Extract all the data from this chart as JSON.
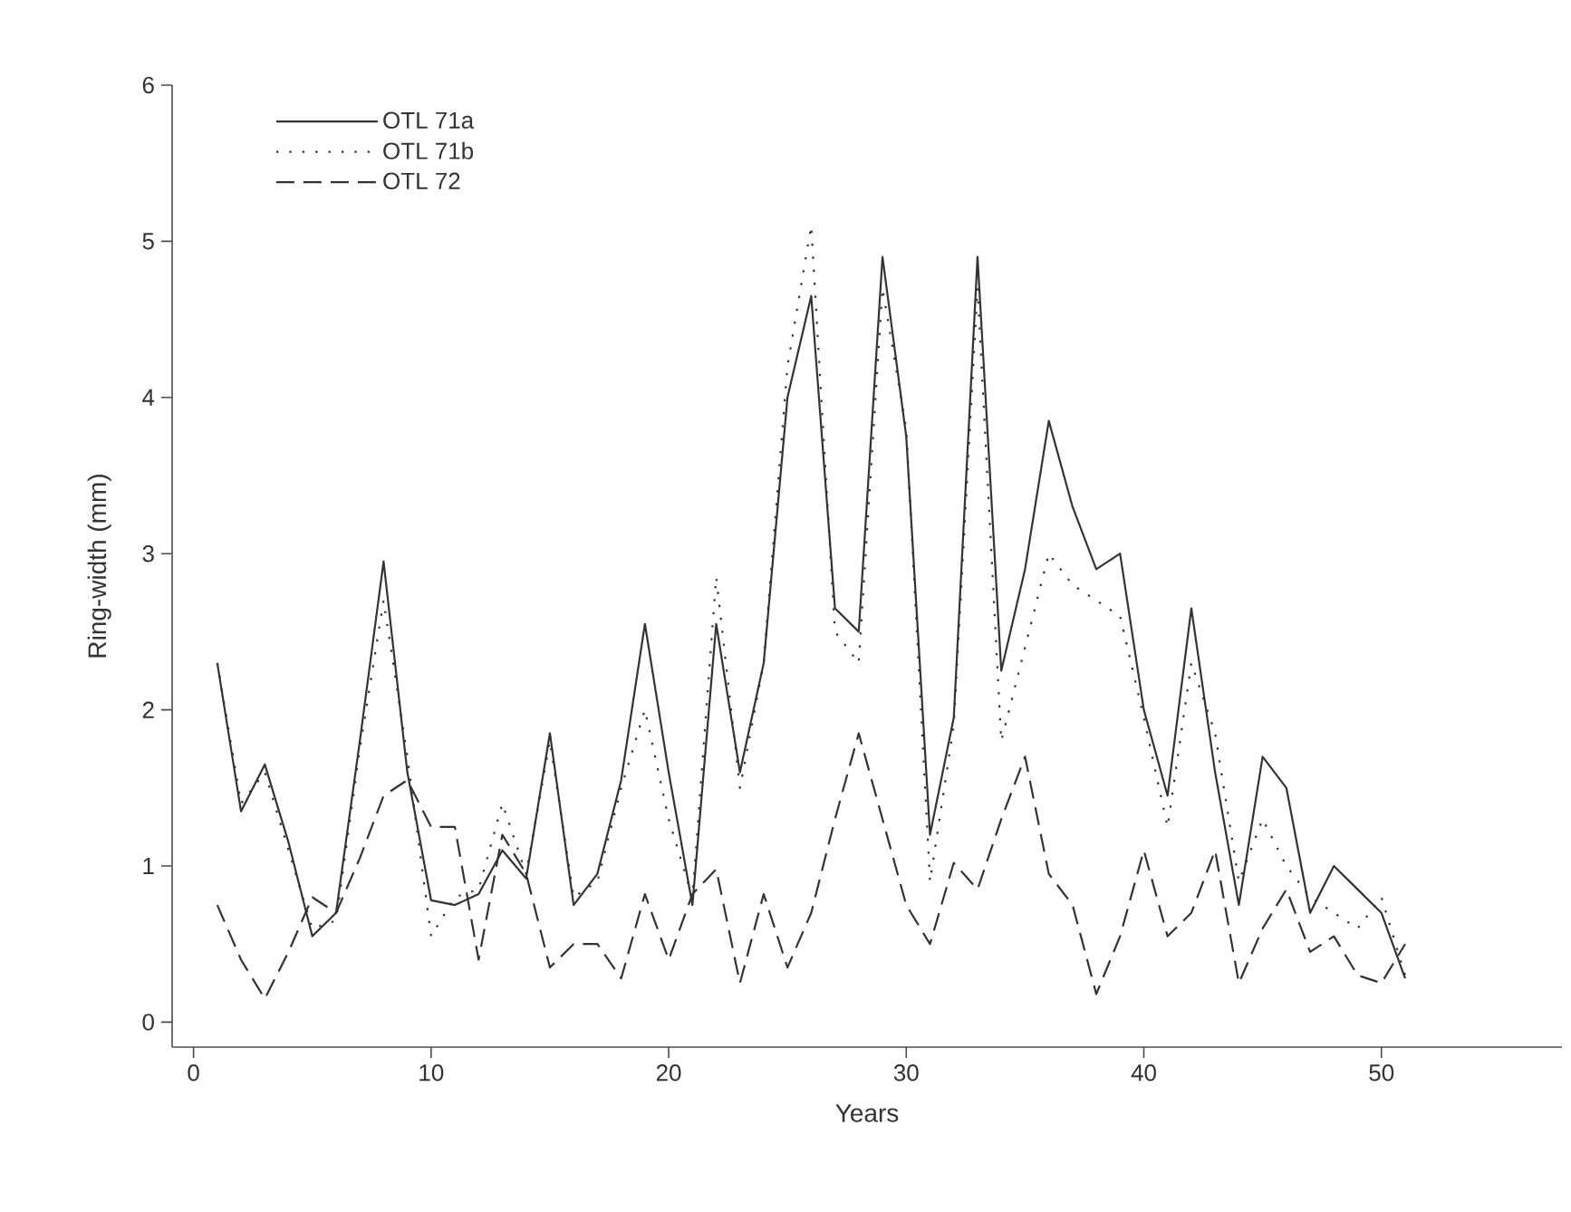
{
  "chart_data": {
    "type": "line",
    "xlabel": "Years",
    "ylabel": "Ring-width (mm)",
    "xlim": [
      -0.9,
      57.6
    ],
    "ylim": [
      -0.16,
      6
    ],
    "xticks": [
      0,
      10,
      20,
      30,
      40,
      50
    ],
    "yticks": [
      0,
      1,
      2,
      3,
      4,
      5,
      6
    ],
    "grid": false,
    "legend": "top left",
    "marker": "none",
    "x": [
      1,
      2,
      3,
      4,
      5,
      6,
      7,
      8,
      9,
      10,
      11,
      12,
      13,
      14,
      15,
      16,
      17,
      18,
      19,
      20,
      21,
      22,
      23,
      24,
      25,
      26,
      27,
      28,
      29,
      30,
      31,
      32,
      33,
      34,
      35,
      36,
      37,
      38,
      39,
      40,
      41,
      42,
      43,
      44,
      45,
      46,
      47,
      48,
      49,
      50,
      51
    ],
    "series": [
      {
        "name": "OTL 71a",
        "color": "#333333",
        "line_style": "solid",
        "values": [
          2.3,
          1.35,
          1.65,
          1.15,
          0.55,
          0.7,
          1.8,
          2.95,
          1.6,
          0.78,
          0.75,
          0.82,
          1.1,
          0.92,
          1.85,
          0.75,
          0.95,
          1.55,
          2.55,
          1.6,
          0.75,
          2.55,
          1.6,
          2.3,
          4.0,
          4.65,
          2.65,
          2.5,
          4.9,
          3.75,
          1.2,
          1.95,
          4.9,
          2.25,
          2.9,
          3.85,
          3.3,
          2.9,
          3.0,
          2.0,
          1.45,
          2.65,
          1.6,
          0.75,
          1.7,
          1.5,
          0.7,
          1.0,
          0.85,
          0.7,
          0.28
        ]
      },
      {
        "name": "OTL 71b",
        "color": "#333333",
        "line_style": "dotted",
        "values": [
          2.3,
          1.4,
          1.6,
          1.1,
          0.6,
          0.65,
          1.75,
          2.7,
          1.7,
          0.55,
          0.8,
          0.85,
          1.4,
          0.95,
          1.8,
          0.8,
          0.9,
          1.5,
          2.0,
          1.3,
          0.8,
          2.85,
          1.5,
          2.3,
          4.2,
          5.1,
          2.5,
          2.3,
          4.7,
          3.8,
          0.9,
          1.9,
          4.7,
          1.8,
          2.4,
          3.0,
          2.8,
          2.7,
          2.6,
          1.95,
          1.25,
          2.3,
          1.85,
          0.9,
          1.3,
          1.0,
          0.8,
          0.7,
          0.6,
          0.8,
          0.3
        ]
      },
      {
        "name": "OTL 72",
        "color": "#333333",
        "line_style": "dashed",
        "values": [
          0.75,
          0.4,
          0.15,
          0.45,
          0.8,
          0.7,
          1.05,
          1.45,
          1.55,
          1.25,
          1.25,
          0.4,
          1.2,
          0.95,
          0.35,
          0.5,
          0.5,
          0.28,
          0.82,
          0.4,
          0.82,
          0.98,
          0.25,
          0.82,
          0.35,
          0.7,
          1.3,
          1.85,
          1.3,
          0.75,
          0.5,
          1.02,
          0.85,
          1.3,
          1.7,
          0.95,
          0.75,
          0.18,
          0.55,
          1.1,
          0.55,
          0.7,
          1.1,
          0.25,
          0.6,
          0.85,
          0.45,
          0.55,
          0.3,
          0.25,
          0.5
        ]
      }
    ]
  }
}
